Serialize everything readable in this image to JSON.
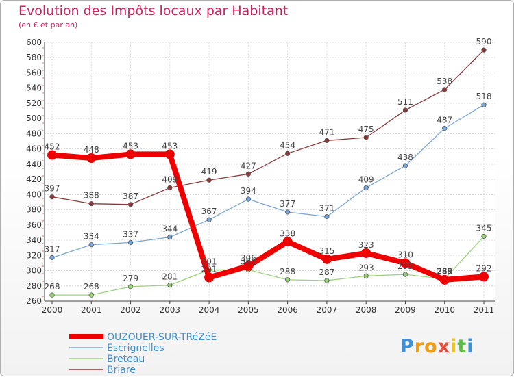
{
  "chart_data": {
    "type": "line",
    "title": "Evolution des Impôts locaux par Habitant",
    "subtitle": "(en € et par an)",
    "xlabel": "",
    "ylabel": "",
    "ylim": [
      260,
      600
    ],
    "ytick_step": 20,
    "grid": true,
    "legend_position": "bottom-left",
    "x": [
      "2000",
      "2001",
      "2002",
      "2003",
      "2004",
      "2005",
      "2006",
      "2007",
      "2008",
      "2009",
      "2010",
      "2011"
    ],
    "series": [
      {
        "name": "OUZOUER-SUR-TRéZéE",
        "color": "#ee0000",
        "values": [
          452,
          448,
          453,
          453,
          291,
          306,
          338,
          315,
          323,
          310,
          288,
          292
        ]
      },
      {
        "name": "Escrignelles",
        "color": "#7ba7d8",
        "values": [
          317,
          334,
          337,
          344,
          367,
          394,
          377,
          371,
          409,
          438,
          487,
          518
        ]
      },
      {
        "name": "Breteau",
        "color": "#9bd37a",
        "values": [
          268,
          268,
          279,
          281,
          301,
          301,
          288,
          287,
          293,
          295,
          289,
          345
        ]
      },
      {
        "name": "Briare",
        "color": "#8b3a3a",
        "values": [
          397,
          388,
          387,
          409,
          419,
          427,
          454,
          471,
          475,
          511,
          538,
          590
        ]
      }
    ]
  },
  "branding": {
    "logo_letters": [
      "P",
      "r",
      "o",
      "x",
      "i",
      "t",
      "i"
    ],
    "logo_colors": [
      "#3d8fd6",
      "#f39c12",
      "#f39c12",
      "#e74c3c",
      "#f1c40f",
      "#5dbb46",
      "#3d8fd6"
    ]
  }
}
